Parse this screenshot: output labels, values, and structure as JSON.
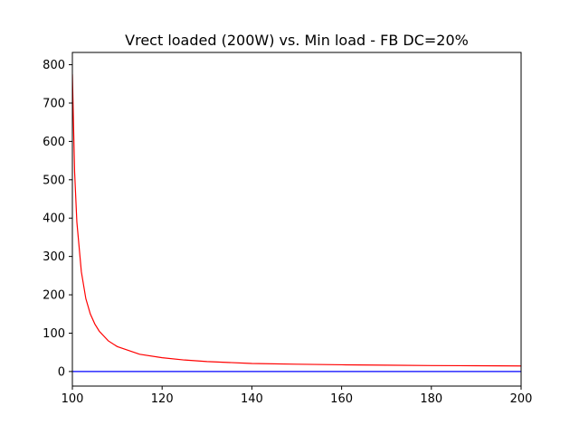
{
  "chart_data": {
    "type": "line",
    "title": "Vrect loaded (200W) vs. Min load - FB DC=20%",
    "xlabel": "",
    "ylabel": "",
    "xlim": [
      100,
      200
    ],
    "ylim": [
      -38,
      832
    ],
    "xticks": [
      100,
      120,
      140,
      160,
      180,
      200
    ],
    "yticks": [
      0,
      100,
      200,
      300,
      400,
      500,
      600,
      700,
      800
    ],
    "grid": false,
    "legend": "none",
    "series": [
      {
        "color": "#ff0000",
        "x": [
          100,
          100.5,
          101,
          102,
          103,
          104,
          105,
          106,
          108,
          110,
          115,
          120,
          125,
          130,
          140,
          150,
          160,
          170,
          180,
          190,
          200
        ],
        "y": [
          775,
          520,
          390,
          260,
          190,
          150,
          124,
          105,
          80,
          65,
          45,
          36,
          30,
          26,
          21,
          19,
          17.5,
          16.5,
          15.5,
          15,
          14.5
        ]
      },
      {
        "color": "#0000ff",
        "x": [
          100,
          200
        ],
        "y": [
          0,
          0
        ]
      }
    ]
  }
}
